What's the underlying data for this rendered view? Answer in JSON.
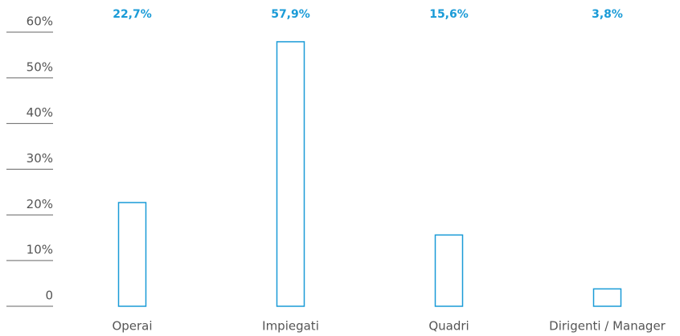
{
  "chart_data": {
    "type": "bar",
    "categories": [
      "Operai",
      "Impiegati",
      "Quadri",
      "Dirigenti / Manager"
    ],
    "values": [
      22.7,
      57.9,
      15.6,
      3.8
    ],
    "value_labels": [
      "22,7%",
      "57,9%",
      "15,6%",
      "3,8%"
    ],
    "color": "#1a9bd7",
    "ylim": [
      0,
      60
    ],
    "yticks": [
      0,
      {
        "value": 10,
        "label": "10%"
      },
      {
        "value": 20,
        "label": "20%"
      },
      {
        "value": 30,
        "label": "30%"
      },
      {
        "value": 40,
        "label": "40%"
      },
      {
        "value": 50,
        "label": "50%"
      },
      {
        "value": 60,
        "label": "60%"
      }
    ],
    "grid": false
  }
}
